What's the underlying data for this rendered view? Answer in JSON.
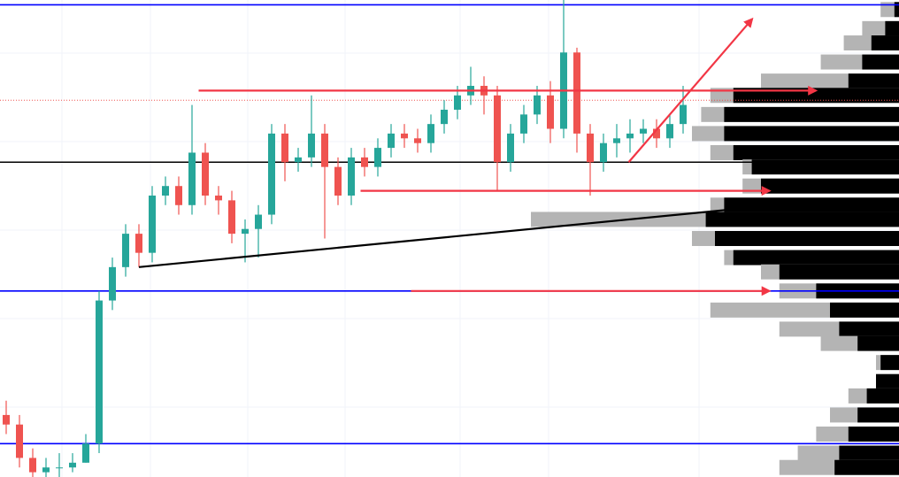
{
  "chart_data": {
    "type": "candlestick",
    "ylim": [
      0,
      100
    ],
    "open": [
      13,
      11,
      4,
      1,
      2,
      2,
      3,
      7,
      37,
      44,
      51,
      47,
      59,
      61,
      57,
      68,
      59,
      58,
      51,
      52,
      55,
      72,
      66,
      67,
      72,
      65,
      59,
      67,
      65,
      69,
      72,
      71,
      70,
      74,
      77,
      80,
      82,
      80,
      66,
      72,
      76,
      80,
      73,
      89,
      72,
      66,
      70,
      71,
      72,
      73,
      71,
      74
    ],
    "high": [
      16,
      13,
      6,
      4,
      5,
      5,
      9,
      39,
      46,
      53,
      53,
      61,
      63,
      63,
      78,
      70,
      61,
      60,
      54,
      57,
      74,
      74,
      69,
      80,
      74,
      67,
      69,
      69,
      71,
      74,
      74,
      73,
      76,
      79,
      82,
      86,
      84,
      82,
      74,
      78,
      82,
      83,
      100,
      90,
      74,
      72,
      74,
      75,
      75,
      75,
      76,
      82
    ],
    "low": [
      9,
      2,
      0,
      0,
      0,
      1,
      3,
      5,
      35,
      42,
      44,
      45,
      57,
      55,
      55,
      57,
      55,
      49,
      45,
      46,
      53,
      62,
      64,
      65,
      50,
      57,
      57,
      63,
      63,
      67,
      69,
      68,
      68,
      72,
      75,
      78,
      76,
      60,
      64,
      70,
      74,
      70,
      71,
      68,
      59,
      64,
      67,
      68,
      70,
      69,
      69,
      72
    ],
    "close": [
      11,
      4,
      1,
      2,
      2,
      3,
      7,
      37,
      44,
      51,
      47,
      59,
      61,
      57,
      68,
      59,
      58,
      51,
      52,
      55,
      72,
      66,
      67,
      72,
      65,
      59,
      67,
      65,
      69,
      72,
      71,
      70,
      74,
      77,
      80,
      82,
      80,
      66,
      72,
      76,
      80,
      73,
      89,
      72,
      66,
      70,
      71,
      72,
      73,
      71,
      74,
      78
    ],
    "up_color": "#26a69a",
    "down_color": "#ef5350",
    "levels": [
      {
        "value": 99,
        "color": "#0000ff",
        "style": "solid"
      },
      {
        "value": 39,
        "color": "#0000ff",
        "style": "solid"
      },
      {
        "value": 7,
        "color": "#0000ff",
        "style": "solid"
      },
      {
        "value": 66,
        "color": "#000000",
        "style": "solid"
      },
      {
        "value": 79,
        "color": "#ef5350",
        "style": "dotted"
      }
    ],
    "trendlines": [
      {
        "x": [
          14.5,
          61
        ],
        "y": [
          81,
          81
        ],
        "color": "#f23645",
        "arrow": true
      },
      {
        "x": [
          26.7,
          57.5
        ],
        "y": [
          60,
          60
        ],
        "color": "#f23645",
        "arrow": true
      },
      {
        "x": [
          30.5,
          57.5
        ],
        "y": [
          39,
          39
        ],
        "color": "#f23645",
        "arrow": true
      },
      {
        "x": [
          10,
          58
        ],
        "y": [
          44,
          57
        ],
        "color": "#000000",
        "arrow": false
      },
      {
        "x": [
          46.9,
          56.2
        ],
        "y": [
          66,
          96
        ],
        "color": "#f23645",
        "arrow": true
      }
    ],
    "profile": {
      "price": [
        98,
        94,
        91,
        87,
        83,
        80,
        76,
        72,
        68,
        65,
        61,
        57,
        54,
        50,
        46,
        43,
        39,
        35,
        31,
        28,
        24,
        20,
        17,
        13,
        9,
        5,
        2
      ],
      "total": [
        4,
        8,
        12,
        17,
        30,
        41,
        43,
        45,
        41,
        34,
        34,
        41,
        80,
        45,
        38,
        30,
        26,
        41,
        26,
        17,
        5,
        5,
        11,
        15,
        18,
        22,
        26
      ],
      "buy": [
        1,
        3,
        6,
        8,
        11,
        36,
        38,
        38,
        36,
        32,
        30,
        38,
        42,
        40,
        36,
        26,
        18,
        15,
        13,
        9,
        4,
        5,
        7,
        9,
        11,
        13,
        14
      ],
      "total_color": "#b4b4b4",
      "buy_color": "#000000"
    }
  }
}
